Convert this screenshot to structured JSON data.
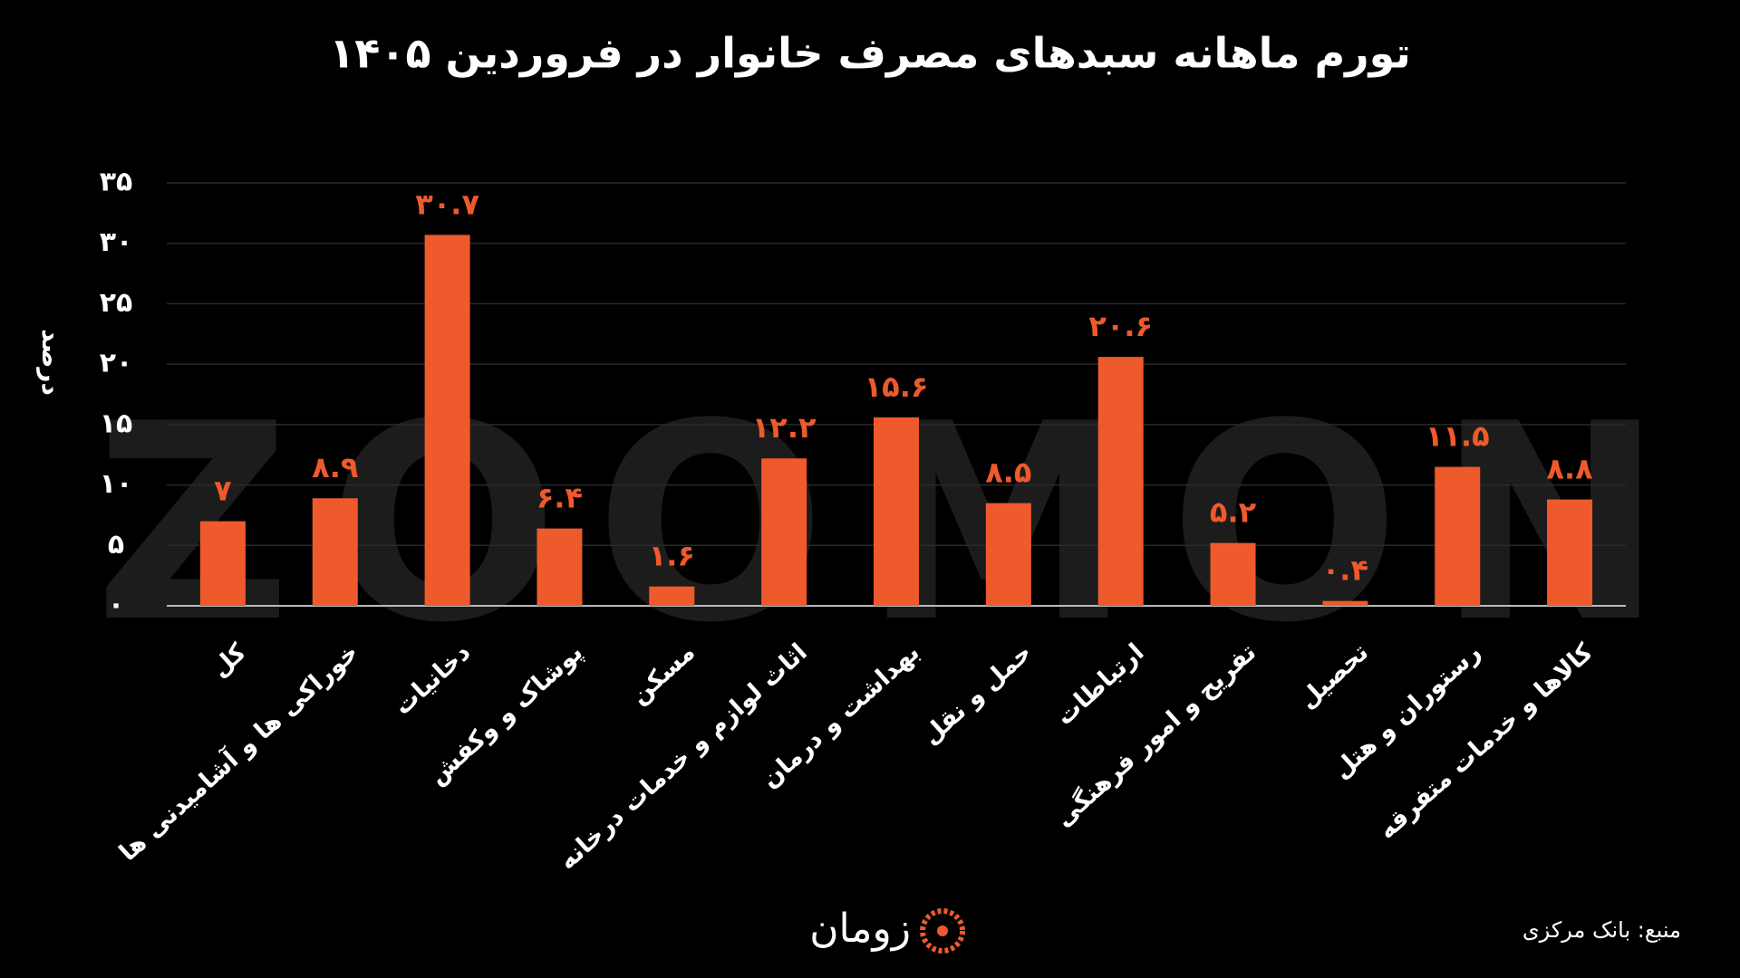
{
  "chart_data": {
    "type": "bar",
    "title": "تورم ماهانه سبدهای مصرف خانوار در فروردین ۱۴۰۵",
    "y_label": "درصد",
    "watermark": "ZOOMON",
    "source": "منبع: بانک مرکزی",
    "logo_text": "زومان",
    "color": "#ef5a2c",
    "grid": true,
    "categories": [
      "کل",
      "خوراکی ها و آشامیدنی ها",
      "دخانیات",
      "پوشاک و وکفش",
      "مسکن",
      "اثاث لوازم و خدمات درخانه",
      "بهداشت و درمان",
      "حمل و نقل",
      "ارتباطات",
      "تفریح و امور فرهنگی",
      "تحصیل",
      "رستوران و هتل",
      "کالاها و خدمات متفرقه"
    ],
    "values": [
      7,
      8.9,
      30.7,
      6.4,
      1.6,
      12.2,
      15.6,
      8.5,
      20.6,
      5.2,
      0.4,
      11.5,
      8.8
    ],
    "value_labels": [
      "۷",
      "۸.۹",
      "۳۰.۷",
      "۶.۴",
      "۱.۶",
      "۱۲.۲",
      "۱۵.۶",
      "۸.۵",
      "۲۰.۶",
      "۵.۲",
      "۰.۴",
      "۱۱.۵",
      "۸.۸"
    ],
    "ylim": [
      0,
      35
    ],
    "yticks": [
      {
        "value": 0,
        "label": "۰"
      },
      {
        "value": 5,
        "label": "۵"
      },
      {
        "value": 10,
        "label": "۱۰"
      },
      {
        "value": 15,
        "label": "۱۵"
      },
      {
        "value": 20,
        "label": "۲۰"
      },
      {
        "value": 25,
        "label": "۲۵"
      },
      {
        "value": 30,
        "label": "۳۰"
      },
      {
        "value": 35,
        "label": "۳۵"
      }
    ]
  }
}
